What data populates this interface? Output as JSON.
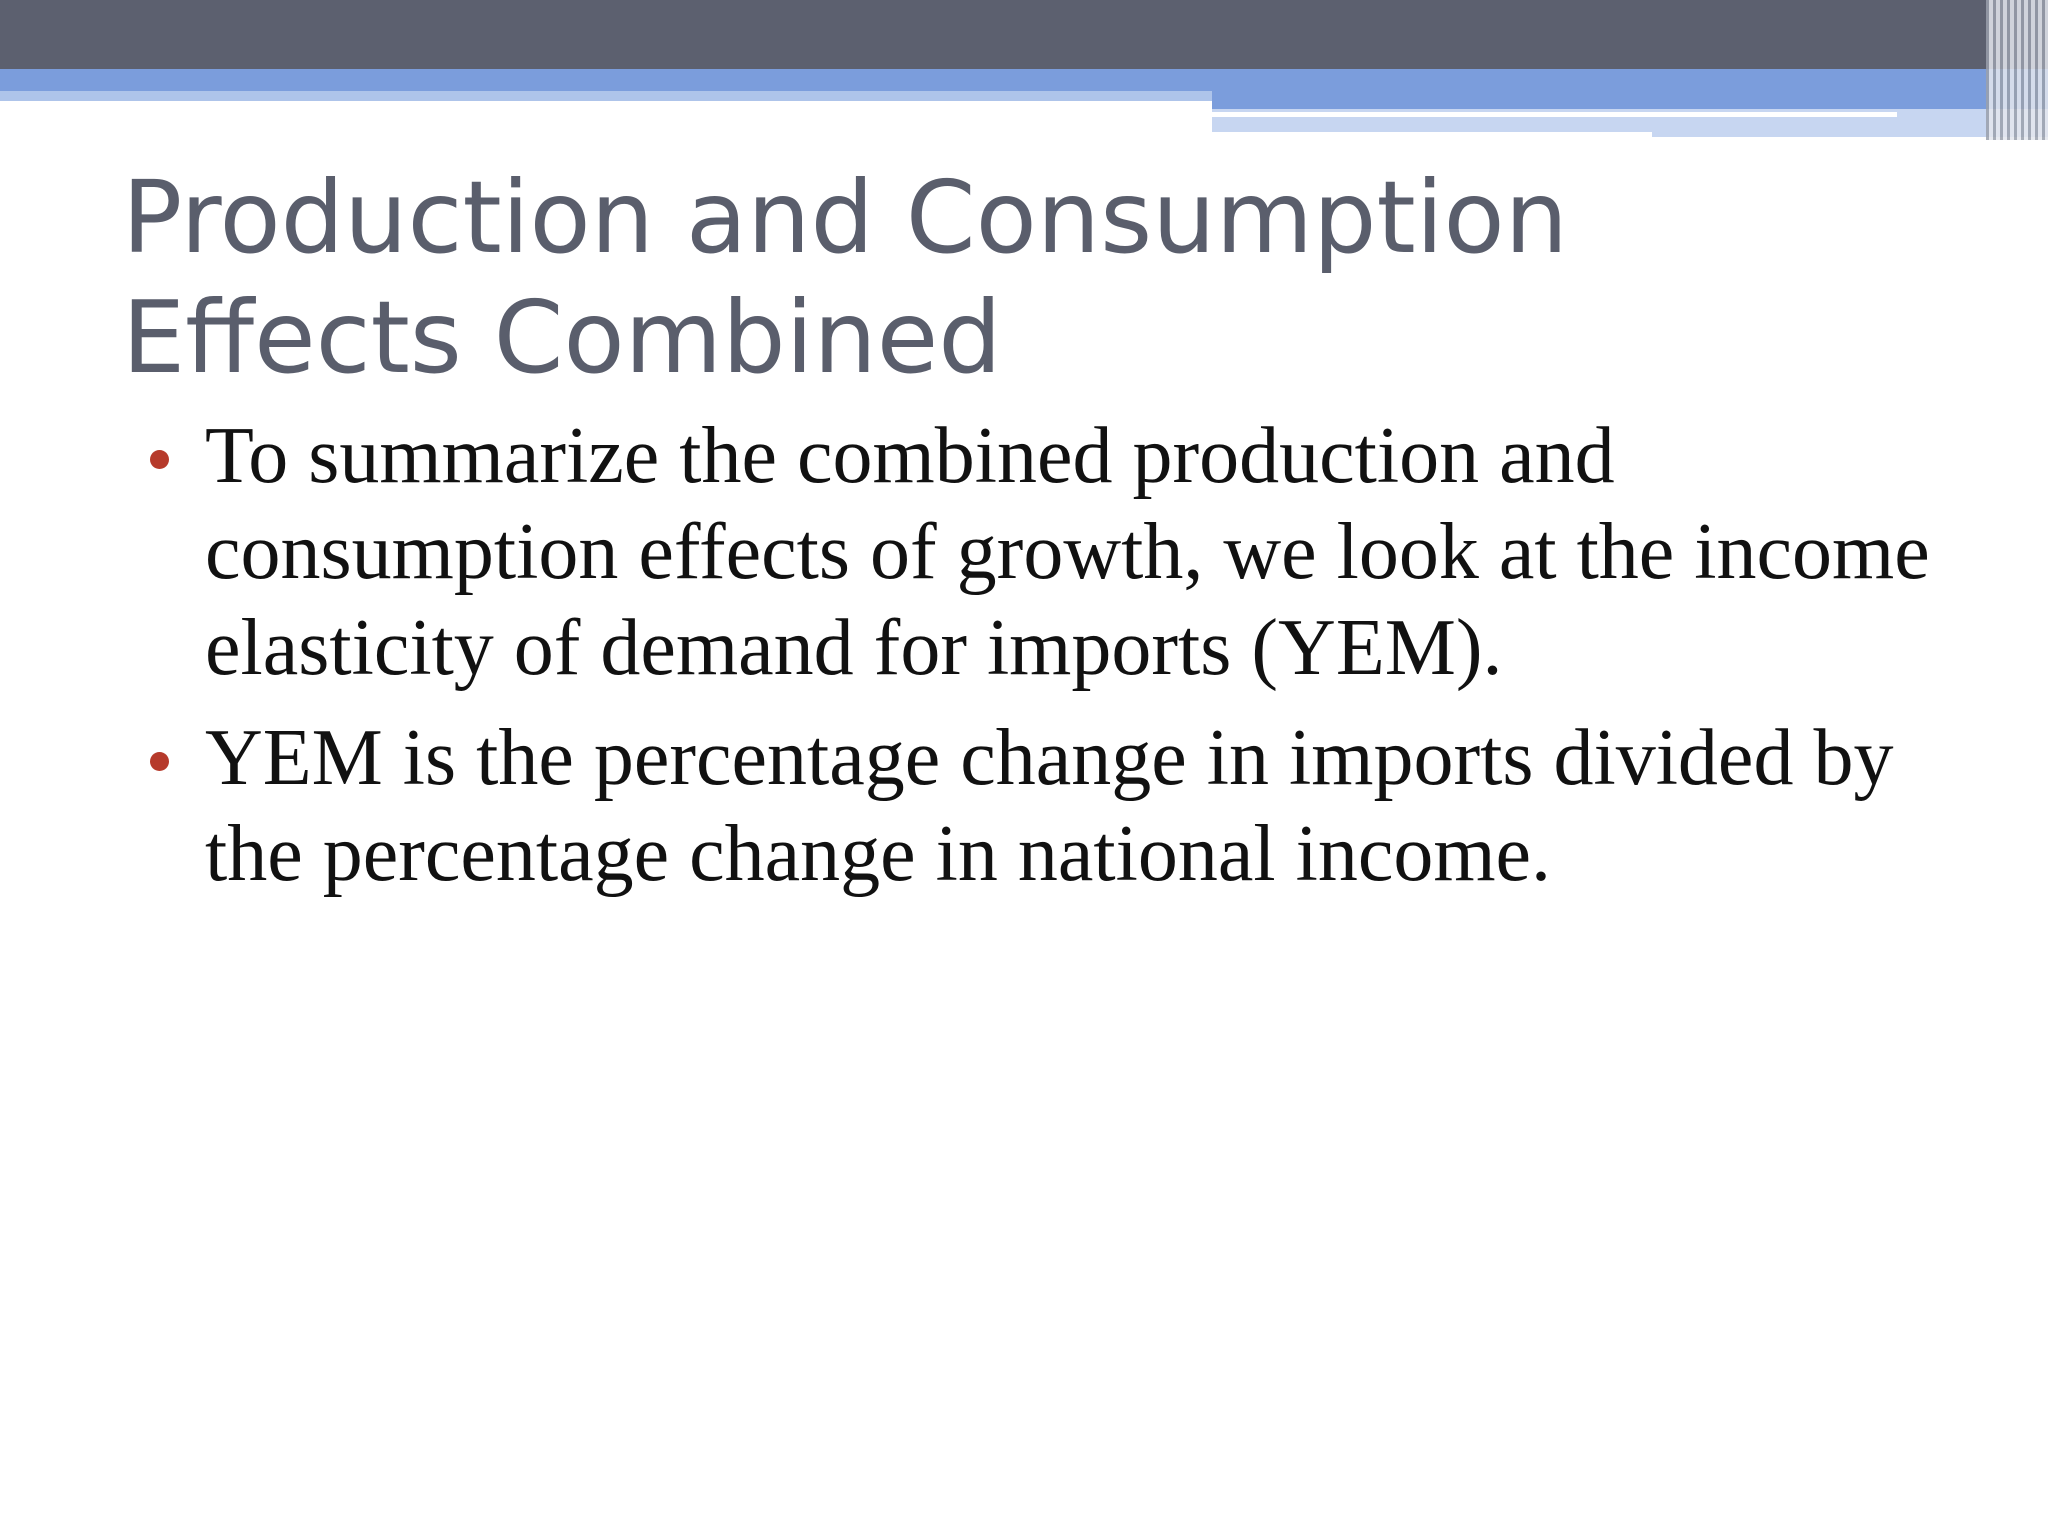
{
  "slide": {
    "title": "Production and Consumption Effects Combined",
    "bullets": [
      "To summarize the combined production and consumption effects of growth, we look at the income elasticity of demand for imports (YEM).",
      "YEM is the percentage change in imports divided by the percentage change in national income."
    ],
    "colors": {
      "header_dark": "#5c606f",
      "header_blue": "#7b9ddc",
      "title_text": "#5a5e6c",
      "bullet_marker": "#b63a2b",
      "body_text": "#111111"
    }
  }
}
